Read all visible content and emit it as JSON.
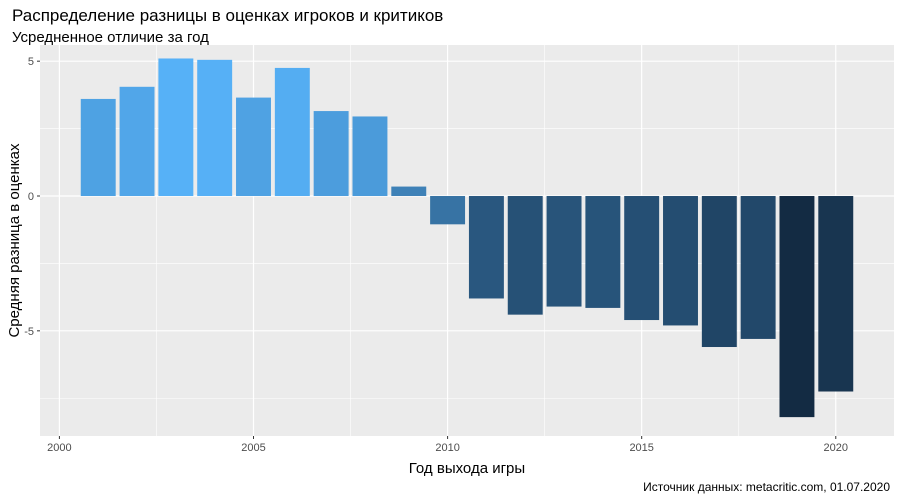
{
  "chart_data": {
    "type": "bar",
    "title": "Распределение разницы в оценках игроков и критиков",
    "subtitle": "Усредненное отличие за год",
    "xlabel": "Год выхода игры",
    "ylabel": "Средняя разница в оценках",
    "caption": "Источник данных: metacritic.com, 01.07.2020",
    "xlim": [
      1999.5,
      2021.5
    ],
    "ylim": [
      -8.9,
      5.6
    ],
    "x_ticks": [
      2000,
      2005,
      2010,
      2015,
      2020
    ],
    "y_ticks": [
      -5,
      0,
      5
    ],
    "y_tick_labels": [
      "-5",
      "0",
      "5"
    ],
    "grid": true,
    "legend": "none",
    "color_scale": {
      "low": "#132b43",
      "high": "#56b1f7",
      "min": -8.2,
      "max": 5.1
    },
    "panel_background": "#ebebeb",
    "grid_color": "#ffffff",
    "x": [
      2001,
      2002,
      2003,
      2004,
      2005,
      2006,
      2007,
      2008,
      2009,
      2010,
      2011,
      2012,
      2013,
      2014,
      2015,
      2016,
      2017,
      2018,
      2019,
      2020
    ],
    "values": [
      3.6,
      4.05,
      5.1,
      5.05,
      3.65,
      4.75,
      3.15,
      2.95,
      0.35,
      -1.05,
      -3.8,
      -4.4,
      -4.1,
      -4.15,
      -4.6,
      -4.8,
      -5.6,
      -5.3,
      -8.2,
      -7.25
    ]
  }
}
